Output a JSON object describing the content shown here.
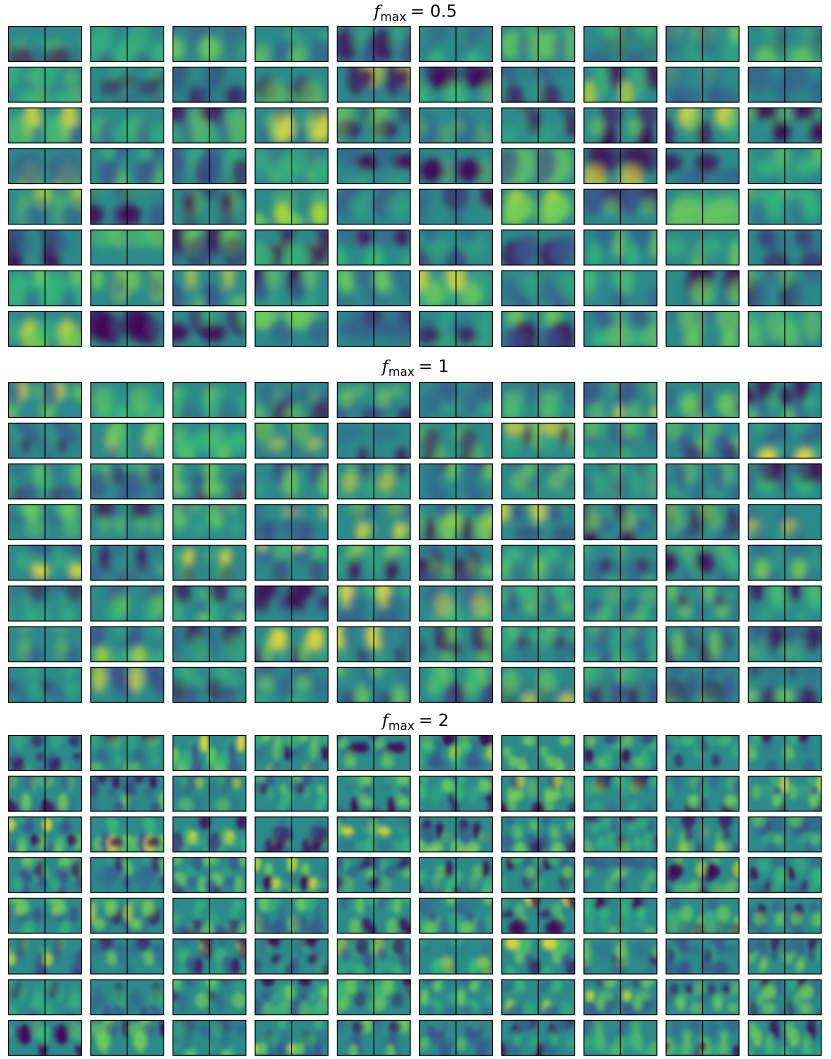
{
  "sections": [
    {
      "symbol": "f",
      "subscript": "max",
      "equals": "= 0.5"
    },
    {
      "symbol": "f",
      "subscript": "max",
      "equals": "= 1"
    },
    {
      "symbol": "f",
      "subscript": "max",
      "equals": "= 2"
    }
  ]
}
